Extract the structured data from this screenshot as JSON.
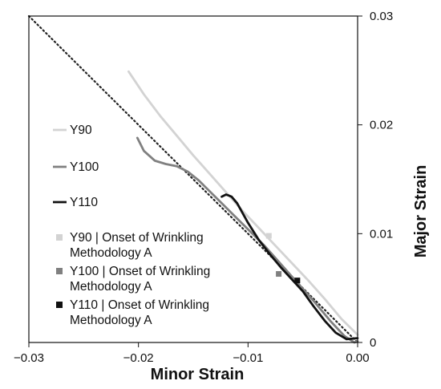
{
  "chart_data": {
    "type": "line",
    "xlabel": "Minor Strain",
    "ylabel": "Major Strain",
    "xlim": [
      -0.03,
      0.0
    ],
    "ylim": [
      0.0,
      0.03
    ],
    "x_ticks": [
      "−0.03",
      "−0.02",
      "−0.01",
      "0.00"
    ],
    "y_ticks": [
      "0",
      "0.01",
      "0.02",
      "0.03"
    ],
    "x_tick_values": [
      -0.03,
      -0.02,
      -0.01,
      0.0
    ],
    "y_tick_values": [
      0,
      0.01,
      0.02,
      0.03
    ],
    "grid": false,
    "legend_position": "left",
    "reference_line": {
      "style": "dotted",
      "color": "#222222",
      "x": [
        -0.03,
        0.0
      ],
      "y": [
        0.03,
        0.0
      ]
    },
    "series": [
      {
        "name": "Y90",
        "color": "#d3d3d3",
        "x": [
          -0.0209,
          -0.0195,
          -0.018,
          -0.0165,
          -0.015,
          -0.0135,
          -0.012,
          -0.0105,
          -0.009,
          -0.0075,
          -0.006,
          -0.0045,
          -0.003,
          -0.0015,
          0.0
        ],
        "y": [
          0.0249,
          0.0228,
          0.0208,
          0.019,
          0.0172,
          0.0155,
          0.0138,
          0.0121,
          0.0105,
          0.0089,
          0.0073,
          0.0057,
          0.004,
          0.0022,
          0.0007
        ]
      },
      {
        "name": "Y100",
        "color": "#808080",
        "x": [
          -0.0201,
          -0.0195,
          -0.0185,
          -0.0175,
          -0.0165,
          -0.0155,
          -0.0145,
          -0.013,
          -0.0115,
          -0.01,
          -0.0085,
          -0.007,
          -0.0055,
          -0.004,
          -0.0025,
          -0.0012,
          -0.0003,
          0.0
        ],
        "y": [
          0.0188,
          0.0176,
          0.0167,
          0.0164,
          0.0162,
          0.0157,
          0.0149,
          0.0134,
          0.0119,
          0.0104,
          0.0089,
          0.0072,
          0.0055,
          0.0038,
          0.002,
          0.0006,
          0.0,
          0.0001
        ]
      },
      {
        "name": "Y110",
        "color": "#111111",
        "x": [
          -0.0124,
          -0.012,
          -0.0115,
          -0.011,
          -0.0105,
          -0.01,
          -0.009,
          -0.008,
          -0.007,
          -0.006,
          -0.005,
          -0.004,
          -0.003,
          -0.002,
          -0.001,
          0.0
        ],
        "y": [
          0.0134,
          0.0136,
          0.0134,
          0.0128,
          0.0119,
          0.011,
          0.0094,
          0.0081,
          0.0069,
          0.0058,
          0.0047,
          0.0033,
          0.002,
          0.0009,
          0.0003,
          0.0004
        ]
      }
    ],
    "markers": [
      {
        "name": "Y90 | Onset of Wrinkling Methodology A",
        "color": "#d3d3d3",
        "x": -0.0081,
        "y": 0.0098
      },
      {
        "name": "Y100 | Onset of Wrinkling Methodology A",
        "color": "#808080",
        "x": -0.0072,
        "y": 0.0063
      },
      {
        "name": "Y110 | Onset of Wrinkling Methodology A",
        "color": "#111111",
        "x": -0.0055,
        "y": 0.0057
      }
    ],
    "legend": [
      {
        "kind": "line",
        "color": "#d3d3d3",
        "lines": [
          "Y90"
        ]
      },
      {
        "kind": "line",
        "color": "#808080",
        "lines": [
          "Y100"
        ]
      },
      {
        "kind": "line",
        "color": "#111111",
        "lines": [
          "Y110"
        ]
      },
      {
        "kind": "marker",
        "color": "#d3d3d3",
        "lines": [
          "Y90 | Onset of Wrinkling",
          "Methodology A"
        ]
      },
      {
        "kind": "marker",
        "color": "#808080",
        "lines": [
          "Y100 | Onset of Wrinkling",
          "Methodology A"
        ]
      },
      {
        "kind": "marker",
        "color": "#111111",
        "lines": [
          "Y110 | Onset of Wrinkling",
          "Methodology A"
        ]
      }
    ]
  }
}
